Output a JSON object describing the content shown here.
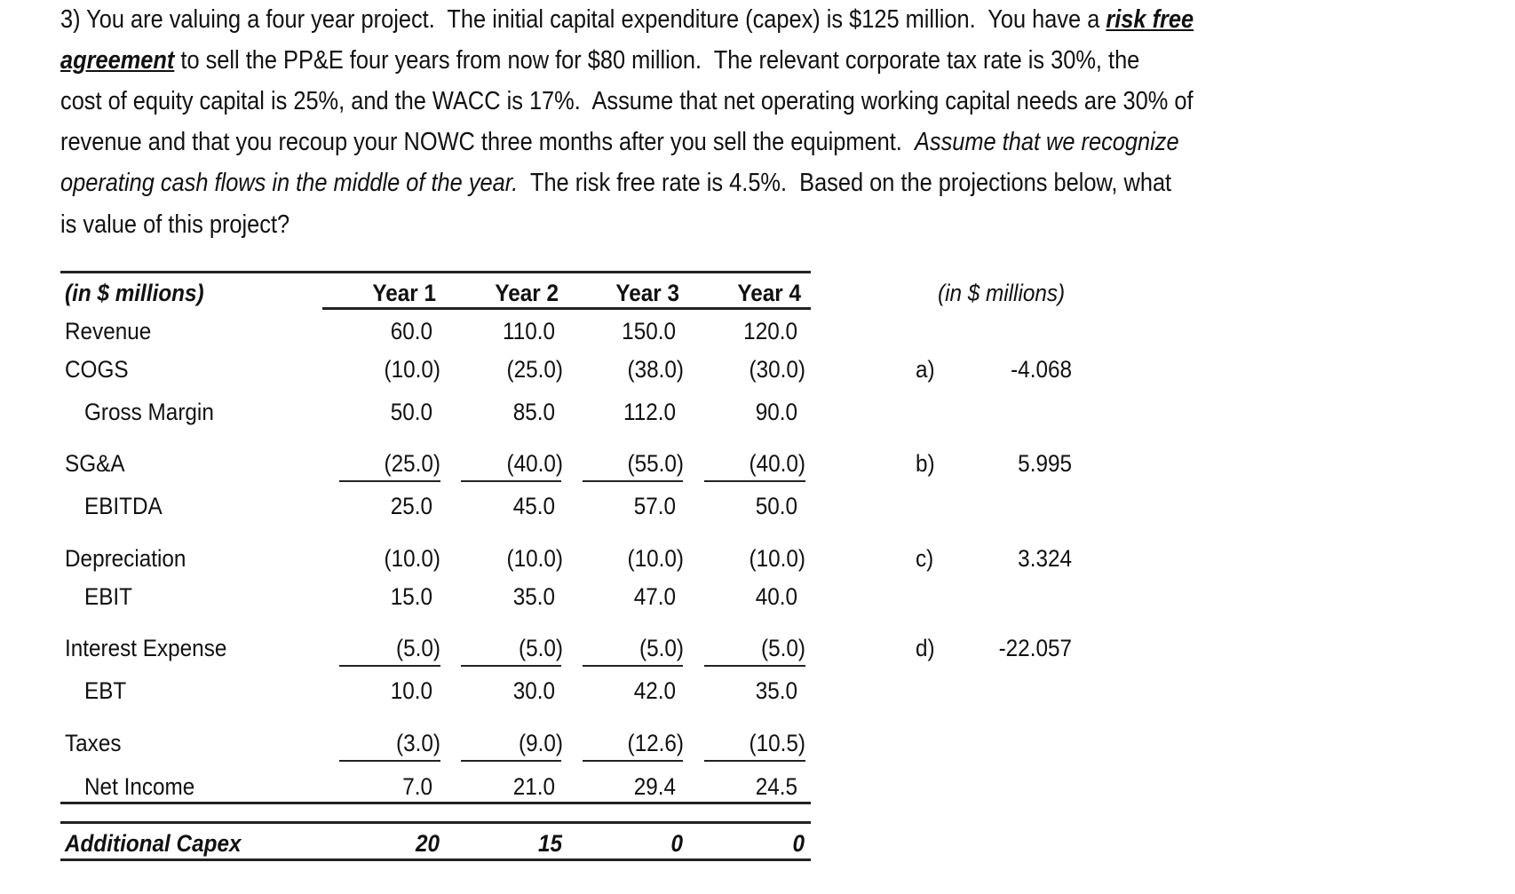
{
  "question": {
    "lines": [
      [
        {
          "text": "3) You are valuing a four year project.  The initial capital expenditure (capex) is $125 million.  You have a "
        },
        {
          "text": "risk free"
        }
      ],
      [
        {
          "text": "agreement"
        },
        {
          "text": " to sell the PP&E four years from now for $80 million.  The relevant corporate tax rate is 30%, the"
        }
      ],
      [
        {
          "text": "cost of equity capital is 25%, and the WACC is 17%.  Assume that net operating working capital needs are 30% of"
        }
      ],
      [
        {
          "text": "revenue and that you recoup your NOWC three months after you sell the equipment.  "
        },
        {
          "text": "Assume that we recognize"
        }
      ],
      [
        {
          "text": "operating cash flows in the middle of the year."
        },
        {
          "text": "  The risk free rate is 4.5%.  Based on the projections below, what"
        }
      ],
      [
        {
          "text": "is value of this project?"
        }
      ]
    ]
  },
  "table": {
    "unit_label": "(in $ millions)",
    "columns": [
      "Year 1",
      "Year 2",
      "Year 3",
      "Year 4"
    ],
    "rows": [
      {
        "label": "Revenue",
        "values": [
          "60.0",
          "110.0",
          "150.0",
          "120.0"
        ]
      },
      {
        "label": "COGS",
        "values": [
          "(10.0)",
          "(25.0)",
          "(38.0)",
          "(30.0)"
        ]
      },
      {
        "label": "Gross Margin",
        "values": [
          "50.0",
          "85.0",
          "112.0",
          "90.0"
        ]
      },
      {
        "label": "SG&A",
        "values": [
          "(25.0)",
          "(40.0)",
          "(55.0)",
          "(40.0)"
        ]
      },
      {
        "label": "EBITDA",
        "values": [
          "25.0",
          "45.0",
          "57.0",
          "50.0"
        ]
      },
      {
        "label": "Depreciation",
        "values": [
          "(10.0)",
          "(10.0)",
          "(10.0)",
          "(10.0)"
        ]
      },
      {
        "label": "EBIT",
        "values": [
          "15.0",
          "35.0",
          "47.0",
          "40.0"
        ]
      },
      {
        "label": "Interest Expense",
        "values": [
          "(5.0)",
          "(5.0)",
          "(5.0)",
          "(5.0)"
        ]
      },
      {
        "label": "EBT",
        "values": [
          "10.0",
          "30.0",
          "42.0",
          "35.0"
        ]
      },
      {
        "label": "Taxes",
        "values": [
          "(3.0)",
          "(9.0)",
          "(12.6)",
          "(10.5)"
        ]
      },
      {
        "label": "Net Income",
        "values": [
          "7.0",
          "21.0",
          "29.4",
          "24.5"
        ]
      }
    ],
    "capex": {
      "label": "Additional Capex",
      "values": [
        "20",
        "15",
        "0",
        "0"
      ]
    }
  },
  "answers": {
    "unit_label": "(in $ millions)",
    "options": [
      {
        "letter": "a)",
        "value": "-4.068"
      },
      {
        "letter": "b)",
        "value": "5.995"
      },
      {
        "letter": "c)",
        "value": "3.324"
      },
      {
        "letter": "d)",
        "value": "-22.057"
      }
    ]
  }
}
